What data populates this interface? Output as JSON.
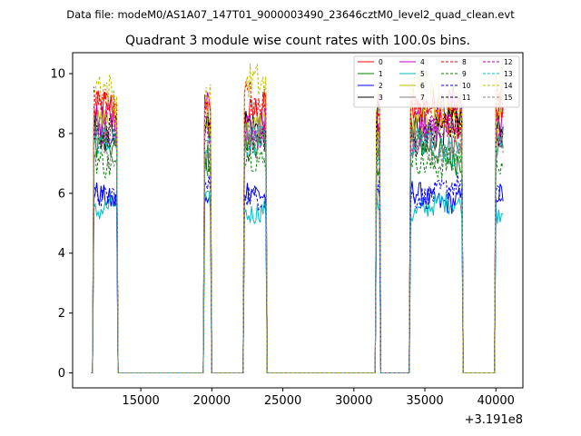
{
  "suptitle": "Data file: modeM0/AS1A07_147T01_9000003490_23646cztM0_level2_quad_clean.evt",
  "chart_data": {
    "type": "line",
    "title": "Quadrant 3 module wise count rates with 100.0s bins.",
    "xlabel": "",
    "ylabel": "",
    "offset_label": "+3.191e8",
    "xlim": [
      10200,
      41900
    ],
    "ylim": [
      -0.5,
      10.7
    ],
    "x_ticks": [
      15000,
      20000,
      25000,
      30000,
      35000,
      40000
    ],
    "x_tick_labels": [
      "15000",
      "20000",
      "25000",
      "30000",
      "35000",
      "40000"
    ],
    "y_ticks": [
      0,
      2,
      4,
      6,
      8,
      10
    ],
    "y_tick_labels": [
      "0",
      "2",
      "4",
      "6",
      "8",
      "10"
    ],
    "grid": false,
    "legend_position": "top-right",
    "legend_columns": 4,
    "time_segments": [
      {
        "start": 11700,
        "end": 13300
      },
      {
        "start": 19500,
        "end": 19900
      },
      {
        "start": 22300,
        "end": 23800
      },
      {
        "start": 31600,
        "end": 31800
      },
      {
        "start": 34000,
        "end": 37600
      },
      {
        "start": 40000,
        "end": 40500
      }
    ],
    "gap_value": 0,
    "bin_seconds": 100,
    "series": [
      {
        "name": "0",
        "color": "#ff0000",
        "dash": "solid",
        "level": 8.6
      },
      {
        "name": "1",
        "color": "#008000",
        "dash": "solid",
        "level": 7.4
      },
      {
        "name": "2",
        "color": "#0000ff",
        "dash": "solid",
        "level": 5.9
      },
      {
        "name": "3",
        "color": "#000000",
        "dash": "solid",
        "level": 8.3
      },
      {
        "name": "4",
        "color": "#bf00bf",
        "dash": "solid",
        "level": 8.7
      },
      {
        "name": "5",
        "color": "#00bfbf",
        "dash": "solid",
        "level": 5.5
      },
      {
        "name": "6",
        "color": "#bfbf00",
        "dash": "solid",
        "level": 8.1
      },
      {
        "name": "7",
        "color": "#808080",
        "dash": "solid",
        "level": 7.7
      },
      {
        "name": "8",
        "color": "#ff0000",
        "dash": "dashed",
        "level": 8.9
      },
      {
        "name": "9",
        "color": "#008000",
        "dash": "dashed",
        "level": 7.2
      },
      {
        "name": "10",
        "color": "#0000ff",
        "dash": "dashed",
        "level": 6.1
      },
      {
        "name": "11",
        "color": "#000000",
        "dash": "dashed",
        "level": 8.0
      },
      {
        "name": "12",
        "color": "#bf00bf",
        "dash": "dashed",
        "level": 7.9
      },
      {
        "name": "13",
        "color": "#00bfbf",
        "dash": "dashed",
        "level": 7.5
      },
      {
        "name": "14",
        "color": "#bfbf00",
        "dash": "dashed",
        "level": 9.4
      },
      {
        "name": "15",
        "color": "#808080",
        "dash": "dashed",
        "level": 7.6
      }
    ]
  }
}
